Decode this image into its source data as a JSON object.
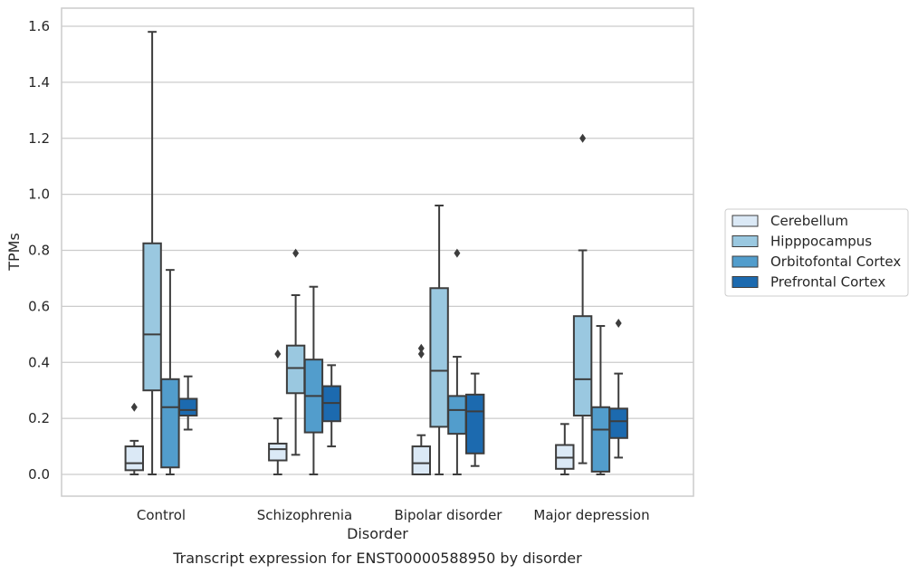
{
  "chart_data": {
    "type": "box",
    "title": "",
    "caption": "Transcript expression for ENST00000588950 by disorder",
    "xlabel": "Disorder",
    "ylabel": "TPMs",
    "ylim": [
      -0.08,
      1.66
    ],
    "yticks": [
      "0.0",
      "0.2",
      "0.4",
      "0.6",
      "0.8",
      "1.0",
      "1.2",
      "1.4",
      "1.6"
    ],
    "categories": [
      "Control",
      "Schizophrenia",
      "Bipolar disorder",
      "Major depression"
    ],
    "grid": "horizontal",
    "legend_position": "right",
    "series": [
      {
        "name": "Cerebellum",
        "color": "#dbe9f6",
        "boxes": [
          {
            "whislo": 0.0,
            "q1": 0.015,
            "med": 0.04,
            "q3": 0.1,
            "whishi": 0.12,
            "fliers": [
              0.24
            ]
          },
          {
            "whislo": 0.0,
            "q1": 0.05,
            "med": 0.09,
            "q3": 0.11,
            "whishi": 0.2,
            "fliers": [
              0.43
            ]
          },
          {
            "whislo": 0.0,
            "q1": 0.0,
            "med": 0.04,
            "q3": 0.1,
            "whishi": 0.14,
            "fliers": [
              0.43,
              0.45
            ]
          },
          {
            "whislo": 0.0,
            "q1": 0.02,
            "med": 0.06,
            "q3": 0.105,
            "whishi": 0.18,
            "fliers": []
          }
        ]
      },
      {
        "name": "Hipppocampus",
        "color": "#9ac8e0",
        "boxes": [
          {
            "whislo": 0.0,
            "q1": 0.3,
            "med": 0.5,
            "q3": 0.825,
            "whishi": 1.58,
            "fliers": []
          },
          {
            "whislo": 0.07,
            "q1": 0.29,
            "med": 0.38,
            "q3": 0.46,
            "whishi": 0.64,
            "fliers": [
              0.79
            ]
          },
          {
            "whislo": 0.0,
            "q1": 0.17,
            "med": 0.37,
            "q3": 0.665,
            "whishi": 0.96,
            "fliers": []
          },
          {
            "whislo": 0.04,
            "q1": 0.21,
            "med": 0.34,
            "q3": 0.565,
            "whishi": 0.8,
            "fliers": [
              1.2
            ]
          }
        ]
      },
      {
        "name": "Orbitofontal Cortex",
        "color": "#529dcc",
        "boxes": [
          {
            "whislo": 0.0,
            "q1": 0.025,
            "med": 0.24,
            "q3": 0.34,
            "whishi": 0.73,
            "fliers": []
          },
          {
            "whislo": 0.0,
            "q1": 0.15,
            "med": 0.28,
            "q3": 0.41,
            "whishi": 0.67,
            "fliers": []
          },
          {
            "whislo": 0.0,
            "q1": 0.145,
            "med": 0.23,
            "q3": 0.28,
            "whishi": 0.42,
            "fliers": [
              0.79
            ]
          },
          {
            "whislo": 0.0,
            "q1": 0.01,
            "med": 0.16,
            "q3": 0.24,
            "whishi": 0.53,
            "fliers": []
          }
        ]
      },
      {
        "name": "Prefrontal Cortex",
        "color": "#1c6aaf",
        "boxes": [
          {
            "whislo": 0.16,
            "q1": 0.21,
            "med": 0.23,
            "q3": 0.27,
            "whishi": 0.35,
            "fliers": []
          },
          {
            "whislo": 0.1,
            "q1": 0.19,
            "med": 0.255,
            "q3": 0.315,
            "whishi": 0.39,
            "fliers": []
          },
          {
            "whislo": 0.03,
            "q1": 0.075,
            "med": 0.225,
            "q3": 0.285,
            "whishi": 0.36,
            "fliers": []
          },
          {
            "whislo": 0.06,
            "q1": 0.13,
            "med": 0.19,
            "q3": 0.235,
            "whishi": 0.36,
            "fliers": [
              0.54
            ]
          }
        ]
      }
    ]
  }
}
